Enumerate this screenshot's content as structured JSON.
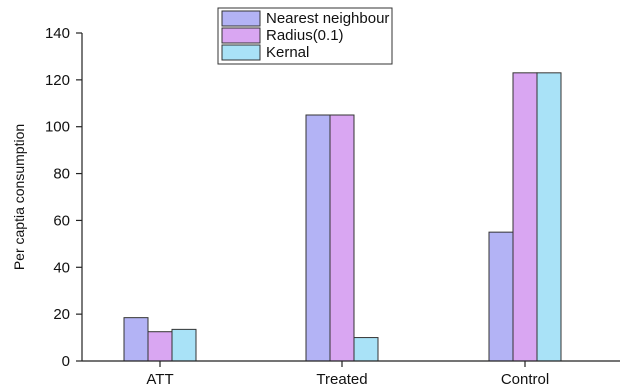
{
  "chart_data": {
    "type": "bar",
    "categories": [
      "ATT",
      "Treated",
      "Control"
    ],
    "series": [
      {
        "name": "Nearest neighbour",
        "values": [
          18.5,
          105,
          55
        ],
        "color": "#b3b3f5"
      },
      {
        "name": "Radius(0.1)",
        "values": [
          12.5,
          105,
          123
        ],
        "color": "#d9a6f2"
      },
      {
        "name": "Kernal",
        "values": [
          13.5,
          10,
          123
        ],
        "color": "#a9e2f7"
      }
    ],
    "title": "",
    "xlabel": "",
    "ylabel": "Per captia consumption",
    "ylim": [
      0,
      140
    ],
    "yticks": [
      0,
      20,
      40,
      60,
      80,
      100,
      120,
      140
    ],
    "grid": false,
    "legend_position": "top-center"
  }
}
